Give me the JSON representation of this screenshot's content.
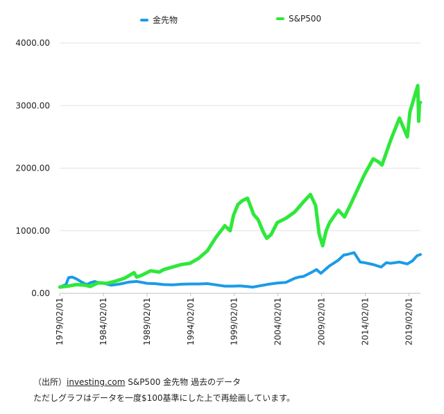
{
  "chart_data": {
    "type": "line",
    "legend_position": "top",
    "grid": true,
    "ylim": [
      0,
      4000
    ],
    "y_ticks": [
      "0.00",
      "1000.00",
      "2000.00",
      "3000.00",
      "4000.00"
    ],
    "x_ticks": [
      "1979/02/01",
      "1984/02/01",
      "1989/02/01",
      "1994/02/01",
      "1999/02/01",
      "2004/02/01",
      "2009/02/01",
      "2014/02/01",
      "2019/02/01"
    ],
    "xlim": [
      1979.08,
      2020.4
    ],
    "series": [
      {
        "name": "金先物",
        "color": "#1a9be8",
        "x": [
          1979.1,
          1979.8,
          1980.1,
          1980.5,
          1981.0,
          1981.6,
          1982.2,
          1982.6,
          1983.1,
          1983.6,
          1984.1,
          1985.0,
          1986.0,
          1987.0,
          1987.9,
          1988.5,
          1989.1,
          1990.0,
          1991.0,
          1992.0,
          1993.0,
          1994.0,
          1995.0,
          1996.0,
          1997.0,
          1998.0,
          1999.0,
          1999.7,
          2000.5,
          2001.2,
          2002.0,
          2003.0,
          2004.0,
          2005.0,
          2006.0,
          2006.5,
          2007.0,
          2008.0,
          2008.5,
          2009.0,
          2010.0,
          2011.0,
          2011.6,
          2012.0,
          2012.8,
          2013.5,
          2014.0,
          2015.0,
          2015.9,
          2016.5,
          2017.0,
          2018.0,
          2018.9,
          2019.5,
          2020.0,
          2020.4
        ],
        "values": [
          100,
          140,
          250,
          260,
          230,
          180,
          140,
          170,
          190,
          165,
          160,
          130,
          150,
          180,
          190,
          175,
          160,
          155,
          140,
          135,
          145,
          150,
          150,
          155,
          135,
          115,
          115,
          120,
          110,
          100,
          120,
          145,
          165,
          175,
          240,
          260,
          270,
          340,
          380,
          320,
          440,
          530,
          610,
          620,
          650,
          500,
          490,
          460,
          420,
          490,
          480,
          500,
          470,
          520,
          600,
          620
        ]
      },
      {
        "name": "S&P500",
        "color": "#2ee83a",
        "x": [
          1979.1,
          1980.0,
          1981.0,
          1982.0,
          1982.6,
          1983.5,
          1984.5,
          1985.5,
          1986.5,
          1987.6,
          1987.9,
          1988.5,
          1989.5,
          1990.5,
          1991.0,
          1992.0,
          1993.0,
          1994.0,
          1995.0,
          1996.0,
          1997.0,
          1998.0,
          1998.6,
          1999.0,
          1999.5,
          2000.0,
          2000.6,
          2001.3,
          2001.8,
          2002.4,
          2002.8,
          2003.3,
          2004.0,
          2005.0,
          2006.0,
          2007.0,
          2007.8,
          2008.4,
          2008.8,
          2009.2,
          2009.6,
          2010.0,
          2011.0,
          2011.7,
          2012.5,
          2013.0,
          2014.0,
          2015.0,
          2015.6,
          2016.0,
          2017.0,
          2018.0,
          2018.9,
          2019.2,
          2019.8,
          2020.1,
          2020.2,
          2020.3,
          2020.4
        ],
        "values": [
          100,
          115,
          140,
          130,
          110,
          170,
          160,
          195,
          240,
          330,
          260,
          290,
          360,
          340,
          380,
          420,
          460,
          480,
          560,
          680,
          900,
          1080,
          1000,
          1250,
          1420,
          1480,
          1520,
          1260,
          1180,
          980,
          880,
          940,
          1130,
          1200,
          1300,
          1460,
          1580,
          1400,
          950,
          760,
          1000,
          1130,
          1330,
          1220,
          1450,
          1600,
          1900,
          2150,
          2100,
          2050,
          2450,
          2800,
          2500,
          2900,
          3180,
          3320,
          2750,
          3050,
          3050
        ]
      }
    ]
  },
  "caption": {
    "line1_prefix": "（出所）",
    "line1_link": "investing.com",
    "line1_suffix": "  S&P500 金先物 過去のデータ",
    "line2": "ただしグラフはデータを一度$100基準にした上で再絵画しています。"
  }
}
